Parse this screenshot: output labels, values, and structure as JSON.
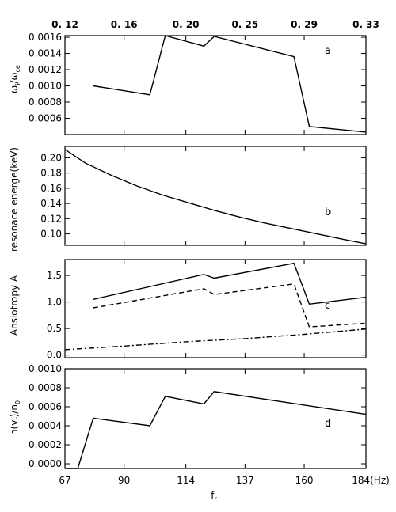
{
  "top_axis": {
    "ticks": [
      {
        "value": 67,
        "label": "0. 12"
      },
      {
        "value": 90,
        "label": "0. 16"
      },
      {
        "value": 114,
        "label": "0. 20"
      },
      {
        "value": 137,
        "label": "0. 25"
      },
      {
        "value": 160,
        "label": "0. 29"
      },
      {
        "value": 184,
        "label": "0. 33"
      }
    ]
  },
  "x_axis": {
    "xlim": [
      67,
      184
    ],
    "ticks": [
      67,
      90,
      114,
      137,
      160
    ],
    "tick_labels": [
      "67",
      "90",
      "114",
      "137",
      "160"
    ],
    "last_label": "184(Hz)",
    "xlabel": "f"
  },
  "chart_data": [
    {
      "type": "line",
      "panel_label": "a",
      "ylabel": "ω/ω",
      "ylim": [
        0.0004,
        0.00162
      ],
      "yticks": [
        0.0006,
        0.0008,
        0.001,
        0.0012,
        0.0014,
        0.0016
      ],
      "ytick_labels": [
        "0.0006",
        "0.0008",
        "0.0010",
        "0.0012",
        "0.0014",
        "0.0016"
      ],
      "series": [
        {
          "style": "solid",
          "x": [
            78,
            100,
            106,
            121,
            125,
            156,
            162,
            184
          ],
          "y": [
            0.001,
            0.00089,
            0.00162,
            0.00149,
            0.00161,
            0.00136,
            0.0005,
            0.00043
          ]
        }
      ]
    },
    {
      "type": "line",
      "panel_label": "b",
      "ylabel": "resonace energe(keV)",
      "ylim": [
        0.085,
        0.215
      ],
      "yticks": [
        0.1,
        0.12,
        0.14,
        0.16,
        0.18,
        0.2
      ],
      "ytick_labels": [
        "0.10",
        "0.12",
        "0.14",
        "0.16",
        "0.18",
        "0.20"
      ],
      "series": [
        {
          "style": "solid",
          "x": [
            67,
            75,
            85,
            95,
            105,
            115,
            125,
            135,
            145,
            155,
            165,
            175,
            184
          ],
          "y": [
            0.211,
            0.193,
            0.177,
            0.163,
            0.151,
            0.141,
            0.131,
            0.122,
            0.114,
            0.107,
            0.1,
            0.093,
            0.087
          ]
        }
      ]
    },
    {
      "type": "line",
      "panel_label": "c",
      "ylabel": "Ansiotropy A",
      "ylim": [
        -0.05,
        1.8
      ],
      "yticks": [
        0.0,
        0.5,
        1.0,
        1.5
      ],
      "ytick_labels": [
        "0.0",
        "0.5",
        "1.0",
        "1.5"
      ],
      "series": [
        {
          "style": "solid",
          "x": [
            78,
            121,
            125,
            156,
            162,
            184
          ],
          "y": [
            1.05,
            1.52,
            1.45,
            1.73,
            0.96,
            1.09
          ]
        },
        {
          "style": "dashed",
          "x": [
            78,
            121,
            125,
            156,
            162,
            184
          ],
          "y": [
            0.89,
            1.25,
            1.14,
            1.34,
            0.53,
            0.6
          ]
        },
        {
          "style": "dashdot",
          "x": [
            67,
            90,
            114,
            137,
            160,
            184
          ],
          "y": [
            0.1,
            0.17,
            0.25,
            0.31,
            0.39,
            0.49
          ]
        }
      ]
    },
    {
      "type": "line",
      "panel_label": "d",
      "ylabel": "n(v)/n",
      "ylim": [
        -5e-05,
        0.001
      ],
      "yticks": [
        0.0,
        0.0002,
        0.0004,
        0.0006,
        0.0008,
        0.001
      ],
      "ytick_labels": [
        "0.0000",
        "0.0002",
        "0.0004",
        "0.0006",
        "0.0008",
        "0.0010"
      ],
      "series": [
        {
          "style": "solid",
          "x": [
            67,
            72,
            78,
            100,
            106,
            121,
            125,
            184
          ],
          "y": [
            -5e-05,
            -5e-05,
            0.00048,
            0.0004,
            0.00071,
            0.00063,
            0.00076,
            0.00052
          ]
        }
      ]
    }
  ]
}
